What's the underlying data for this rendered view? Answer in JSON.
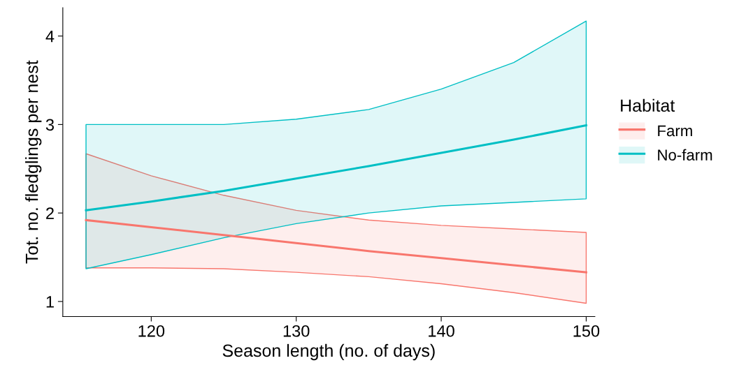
{
  "chart_data": {
    "type": "line",
    "xlabel": "Season length (no. of days)",
    "ylabel": "Tot. no. fledglings per nest",
    "legend_title": "Habitat",
    "legend": "right",
    "grid": false,
    "marker": "none",
    "line_style": "solid",
    "x": [
      115.5,
      120,
      125,
      130,
      135,
      140,
      145,
      150
    ],
    "xlim": [
      113.9,
      150.6
    ],
    "ylim": [
      0.83,
      4.32
    ],
    "xticks": [
      120,
      130,
      140,
      150
    ],
    "yticks": [
      1,
      2,
      3,
      4
    ],
    "series": [
      {
        "name": "Farm",
        "color": "#f8766d",
        "values": [
          1.92,
          1.84,
          1.75,
          1.66,
          1.57,
          1.49,
          1.41,
          1.33
        ],
        "lower": [
          1.38,
          1.38,
          1.37,
          1.33,
          1.28,
          1.2,
          1.1,
          0.98
        ],
        "upper": [
          2.67,
          2.42,
          2.2,
          2.03,
          1.92,
          1.86,
          1.82,
          1.78
        ]
      },
      {
        "name": "No-farm",
        "color": "#00bfc4",
        "values": [
          2.03,
          2.13,
          2.25,
          2.39,
          2.53,
          2.68,
          2.83,
          2.99
        ],
        "lower": [
          1.37,
          1.53,
          1.72,
          1.88,
          2.0,
          2.08,
          2.12,
          2.16
        ],
        "upper": [
          3.0,
          3.0,
          3.0,
          3.06,
          3.17,
          3.4,
          3.7,
          4.17
        ]
      }
    ]
  }
}
